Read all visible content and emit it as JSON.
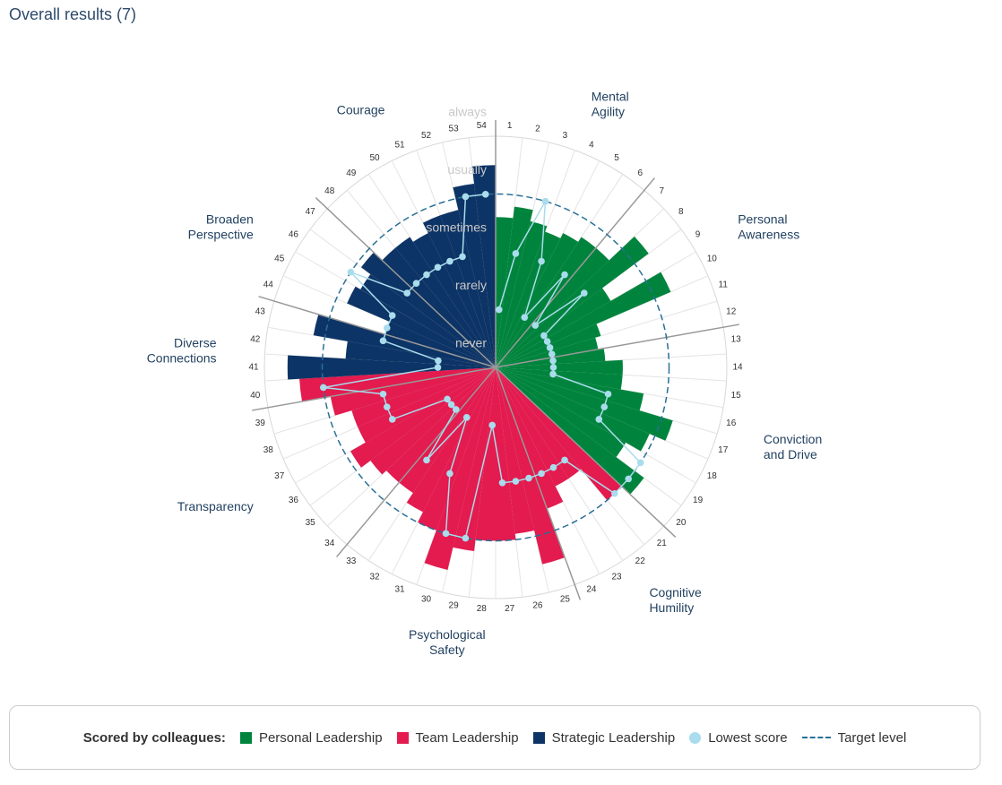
{
  "chart_data": {
    "type": "polar_bar",
    "title": "Overall results (7)",
    "categories": [
      "1",
      "2",
      "3",
      "4",
      "5",
      "6",
      "7",
      "8",
      "9",
      "10",
      "11",
      "12",
      "13",
      "14",
      "15",
      "16",
      "17",
      "18",
      "19",
      "20",
      "21",
      "22",
      "23",
      "24",
      "25",
      "26",
      "27",
      "28",
      "29",
      "30",
      "31",
      "32",
      "33",
      "34",
      "35",
      "36",
      "37",
      "38",
      "39",
      "40",
      "41",
      "42",
      "43",
      "44",
      "45",
      "46",
      "47",
      "48",
      "49",
      "50",
      "51",
      "52",
      "53",
      "54"
    ],
    "series": [
      {
        "name": "Personal Leadership",
        "color": "#00843d",
        "values": [
          2.6,
          2.8,
          2.6,
          2.5,
          2.6,
          2.7,
          2.7,
          3.3,
          2.3,
          3.3,
          1.9,
          1.8,
          1.9,
          2.2,
          2.2,
          2.6,
          3.2,
          2.9,
          2.6,
          3.2,
          null,
          null,
          null,
          null,
          null,
          null,
          null,
          null,
          null,
          null,
          null,
          null,
          null,
          null,
          null,
          null,
          null,
          null,
          null,
          null,
          null,
          null,
          null,
          null,
          null,
          null,
          null,
          null,
          null,
          null,
          null,
          null,
          null,
          null
        ]
      },
      {
        "name": "Team Leadership",
        "color": "#e31b4f",
        "values": [
          null,
          null,
          null,
          null,
          null,
          null,
          null,
          null,
          null,
          null,
          null,
          null,
          null,
          null,
          null,
          null,
          null,
          null,
          null,
          null,
          3.0,
          2.3,
          2.3,
          2.6,
          3.5,
          2.9,
          3.0,
          3.0,
          3.2,
          3.6,
          3.0,
          2.8,
          2.6,
          2.6,
          2.7,
          2.9,
          2.6,
          2.6,
          2.9,
          3.4,
          null,
          null,
          null,
          null,
          null,
          null,
          null,
          null,
          null,
          null,
          null,
          null,
          null,
          null
        ]
      },
      {
        "name": "Strategic Leadership",
        "color": "#0d3466",
        "values": [
          null,
          null,
          null,
          null,
          null,
          null,
          null,
          null,
          null,
          null,
          null,
          null,
          null,
          null,
          null,
          null,
          null,
          null,
          null,
          null,
          null,
          null,
          null,
          null,
          null,
          null,
          null,
          null,
          null,
          null,
          null,
          null,
          null,
          null,
          null,
          null,
          null,
          null,
          null,
          null,
          3.6,
          2.6,
          3.2,
          2.0,
          2.8,
          2.7,
          2.9,
          2.7,
          2.7,
          2.6,
          2.8,
          2.8,
          3.2,
          3.5
        ]
      }
    ],
    "lowest_score": {
      "name": "Lowest score",
      "color": "#a9dcec",
      "values": [
        1,
        2,
        3,
        2,
        1,
        2,
        1,
        2,
        1,
        1,
        1,
        1,
        1,
        1,
        1,
        2,
        2,
        2,
        3,
        3,
        3,
        2,
        2,
        2,
        2,
        2,
        2,
        1,
        3,
        3,
        2,
        1,
        2,
        1,
        1,
        1,
        2,
        2,
        2,
        3,
        1,
        1,
        2,
        2,
        2,
        3,
        2,
        2,
        2,
        2,
        2,
        2,
        3,
        3
      ]
    },
    "target_level": {
      "name": "Target level",
      "color": "#2a6f97",
      "value": 3
    },
    "ylim": [
      0,
      4
    ],
    "yticks": [
      {
        "value": 0,
        "label": "never"
      },
      {
        "value": 1,
        "label": "rarely"
      },
      {
        "value": 2,
        "label": "sometimes"
      },
      {
        "value": 3,
        "label": "usually"
      },
      {
        "value": 4,
        "label": "always"
      }
    ],
    "groups": [
      {
        "label": [
          "Mental",
          "Agility"
        ],
        "from": "1",
        "to": "6"
      },
      {
        "label": [
          "Personal",
          "Awareness"
        ],
        "from": "7",
        "to": "12"
      },
      {
        "label": [
          "Conviction",
          "and Drive"
        ],
        "from": "13",
        "to": "20"
      },
      {
        "label": [
          "Cognitive",
          "Humility"
        ],
        "from": "21",
        "to": "24"
      },
      {
        "label": [
          "Psychological",
          "Safety"
        ],
        "from": "25",
        "to": "33"
      },
      {
        "label": [
          "Transparency"
        ],
        "from": "34",
        "to": "39"
      },
      {
        "label": [
          "Diverse",
          "Connections"
        ],
        "from": "40",
        "to": "43"
      },
      {
        "label": [
          "Broaden",
          "Perspective"
        ],
        "from": "44",
        "to": "47"
      },
      {
        "label": [
          "Courage"
        ],
        "from": "48",
        "to": "54"
      }
    ],
    "legend_title": "Scored by colleagues:"
  }
}
